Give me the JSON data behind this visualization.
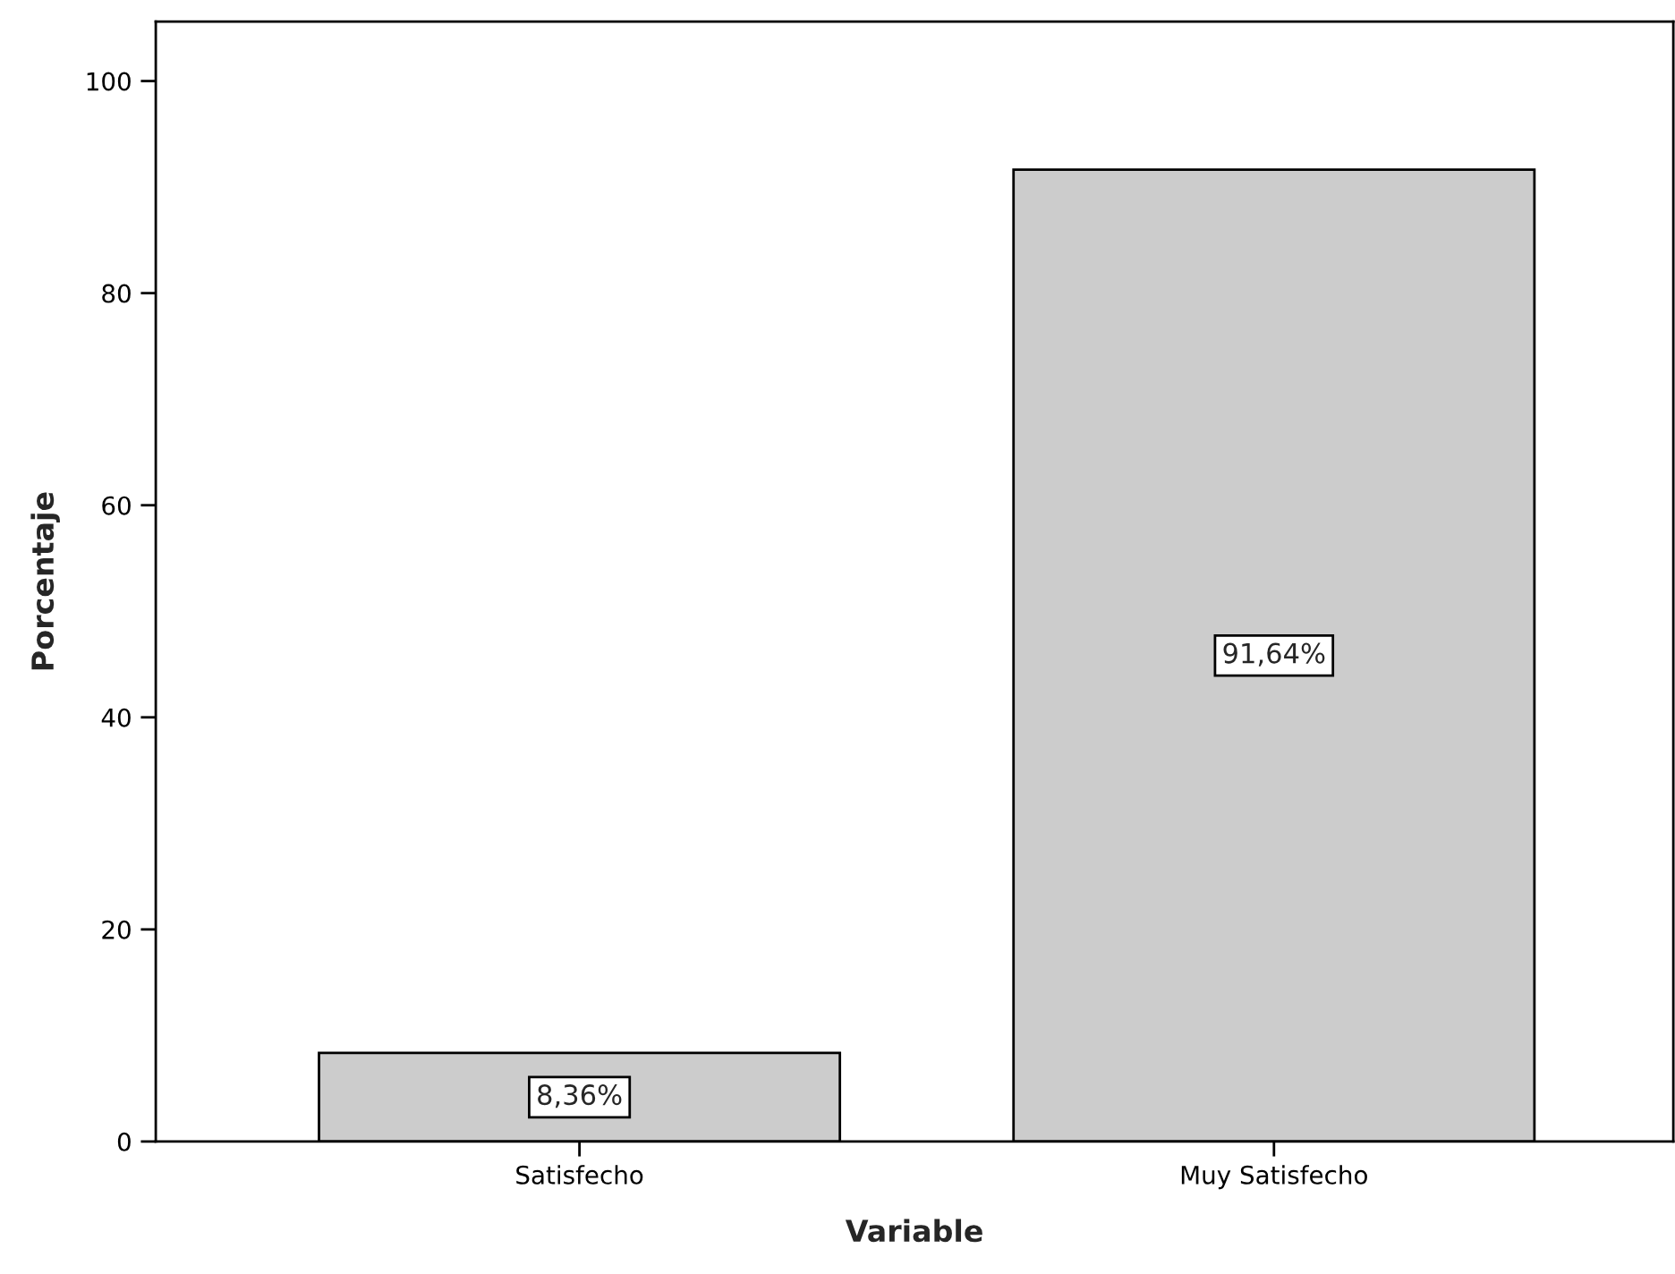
{
  "chart_data": {
    "type": "bar",
    "xlabel": "Variable",
    "ylabel": "Porcentaje",
    "categories": [
      "Satisfecho",
      "Muy Satisfecho"
    ],
    "values": [
      8.36,
      91.64
    ],
    "value_labels": [
      "8,36%",
      "91,64%"
    ],
    "color": "#cccccc",
    "ylim": [
      0,
      105.6
    ],
    "yticks": [
      0,
      20,
      40,
      60,
      80,
      100
    ],
    "grid": false,
    "legend": false
  }
}
